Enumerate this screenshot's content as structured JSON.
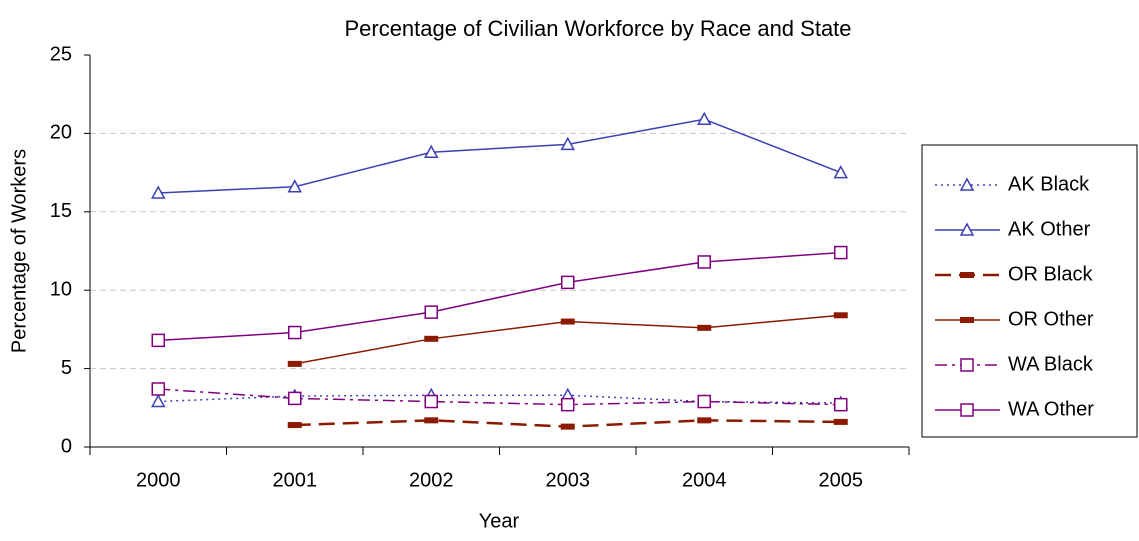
{
  "chart_data": {
    "type": "line",
    "title": "Percentage of Civilian Workforce by Race and State",
    "x_label": "Year",
    "y_label": "Percentage of Workers",
    "categories": [
      "2000",
      "2001",
      "2002",
      "2003",
      "2004",
      "2005"
    ],
    "series": [
      {
        "name": "AK Black",
        "color": "#3c40b4",
        "dash": "dot",
        "marker": "triangle",
        "values": [
          2.9,
          3.25,
          3.3,
          3.3,
          2.9,
          2.8
        ]
      },
      {
        "name": "AK Other",
        "color": "#3c40b4",
        "dash": "solid",
        "marker": "triangle",
        "values": [
          16.2,
          16.6,
          18.8,
          19.3,
          20.9,
          17.5
        ]
      },
      {
        "name": "OR Black",
        "color": "#8b1a00",
        "dash": "longdash",
        "marker": "bar",
        "values": [
          null,
          1.4,
          1.7,
          1.3,
          1.7,
          1.6
        ]
      },
      {
        "name": "OR Other",
        "color": "#8b1a00",
        "dash": "solid",
        "marker": "bar",
        "values": [
          null,
          5.3,
          6.9,
          8.0,
          7.6,
          8.4
        ]
      },
      {
        "name": "WA Black",
        "color": "#800080",
        "dash": "dashdot",
        "marker": "square",
        "values": [
          3.7,
          3.1,
          2.9,
          2.7,
          2.9,
          2.7
        ]
      },
      {
        "name": "WA Other",
        "color": "#800080",
        "dash": "solid",
        "marker": "square",
        "values": [
          6.8,
          7.3,
          8.6,
          10.5,
          11.8,
          12.4
        ]
      }
    ],
    "ylim": [
      0,
      25
    ],
    "yticks": [
      0,
      5,
      10,
      15,
      20,
      25
    ],
    "grid": true,
    "legend": "right"
  }
}
